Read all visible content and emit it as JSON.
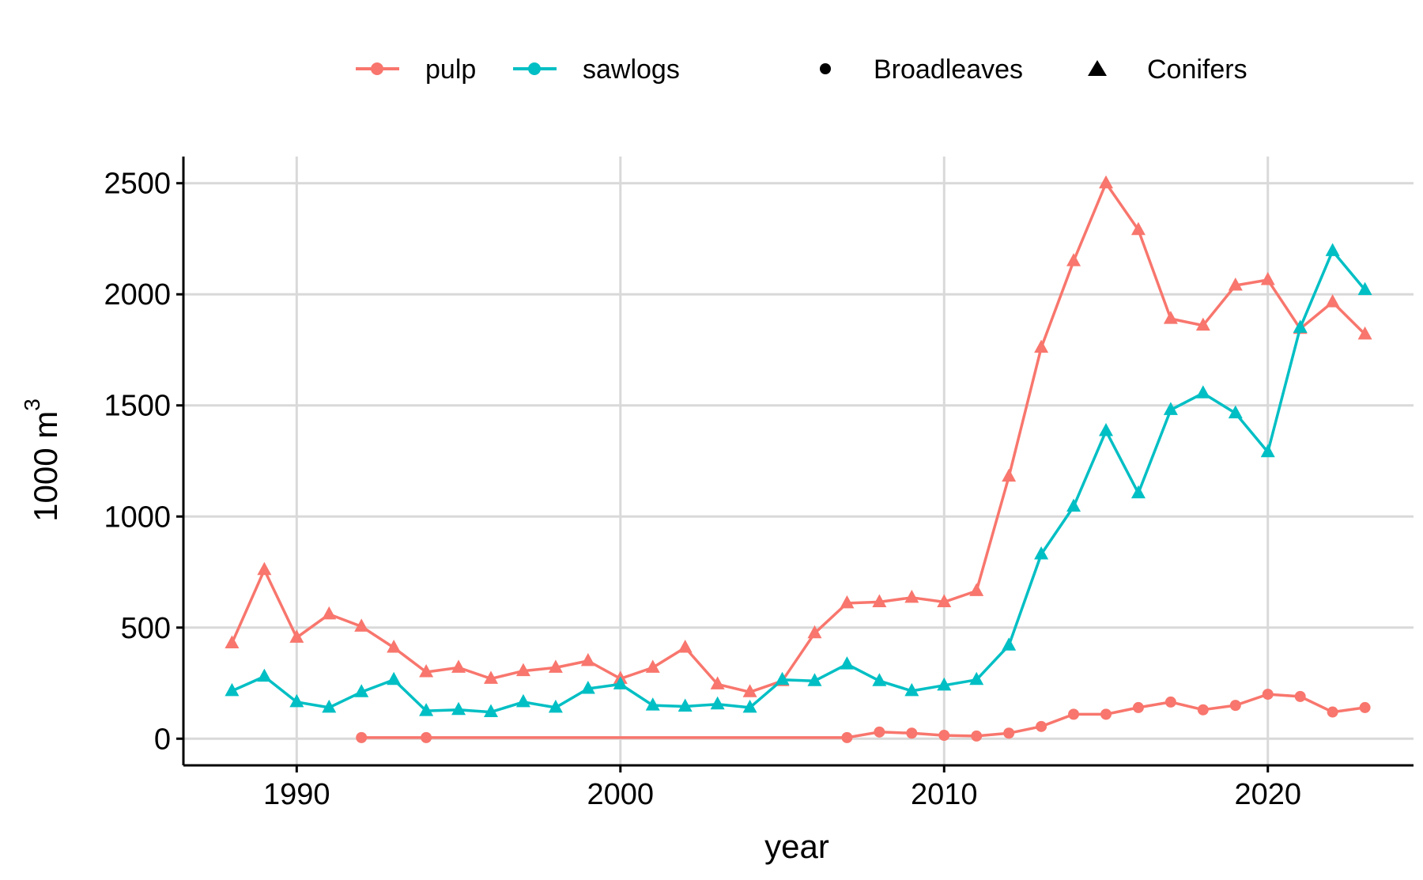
{
  "chart_data": {
    "type": "line",
    "title": "",
    "xlabel": "year",
    "ylabel": "1000 m",
    "ylabel_sup": "3",
    "xlim": [
      1986.5,
      2024.5
    ],
    "ylim": [
      -120,
      2620
    ],
    "x_ticks": [
      1990,
      2000,
      2010,
      2020
    ],
    "y_ticks": [
      0,
      500,
      1000,
      1500,
      2000,
      2500
    ],
    "grid": true,
    "legend_position": "top",
    "colors": {
      "pulp": "#F8766D",
      "sawlogs": "#00BFC4"
    },
    "legend": {
      "color_items": [
        {
          "key": "pulp",
          "label": "pulp"
        },
        {
          "key": "sawlogs",
          "label": "sawlogs"
        }
      ],
      "shape_items": [
        {
          "shape": "circle",
          "label": "Broadleaves"
        },
        {
          "shape": "triangle",
          "label": "Conifers"
        }
      ]
    },
    "series": [
      {
        "color_key": "pulp",
        "shape": "triangle",
        "x": [
          1988,
          1989,
          1990,
          1991,
          1992,
          1993,
          1994,
          1995,
          1996,
          1997,
          1998,
          1999,
          2000,
          2001,
          2002,
          2003,
          2004,
          2005,
          2006,
          2007,
          2008,
          2009,
          2010,
          2011,
          2012,
          2013,
          2014,
          2015,
          2016,
          2017,
          2018,
          2019,
          2020,
          2021,
          2022,
          2023
        ],
        "values": [
          430,
          760,
          455,
          560,
          505,
          410,
          300,
          320,
          270,
          305,
          320,
          350,
          270,
          320,
          410,
          245,
          210,
          260,
          475,
          610,
          615,
          635,
          615,
          665,
          1180,
          1760,
          2150,
          2500,
          2290,
          1890,
          1860,
          2040,
          2065,
          1845,
          1965,
          1820
        ]
      },
      {
        "color_key": "sawlogs",
        "shape": "triangle",
        "x": [
          1988,
          1989,
          1990,
          1991,
          1992,
          1993,
          1994,
          1995,
          1996,
          1997,
          1998,
          1999,
          2000,
          2001,
          2002,
          2003,
          2004,
          2005,
          2006,
          2007,
          2008,
          2009,
          2010,
          2011,
          2012,
          2013,
          2014,
          2015,
          2016,
          2017,
          2018,
          2019,
          2020,
          2021,
          2022,
          2023
        ],
        "values": [
          215,
          280,
          165,
          140,
          210,
          265,
          125,
          130,
          120,
          165,
          140,
          225,
          245,
          150,
          145,
          155,
          140,
          265,
          260,
          335,
          260,
          215,
          240,
          265,
          420,
          830,
          1045,
          1385,
          1105,
          1480,
          1555,
          1465,
          1290,
          1850,
          2195,
          2020
        ]
      },
      {
        "color_key": "pulp",
        "shape": "circle",
        "x": [
          1992,
          1994,
          2007,
          2008,
          2009,
          2010,
          2011,
          2012,
          2013,
          2014,
          2015,
          2016,
          2017,
          2018,
          2019,
          2020,
          2021,
          2022,
          2023
        ],
        "values": [
          5,
          5,
          5,
          30,
          25,
          15,
          12,
          25,
          55,
          110,
          110,
          140,
          165,
          130,
          150,
          200,
          190,
          120,
          140
        ]
      }
    ]
  }
}
